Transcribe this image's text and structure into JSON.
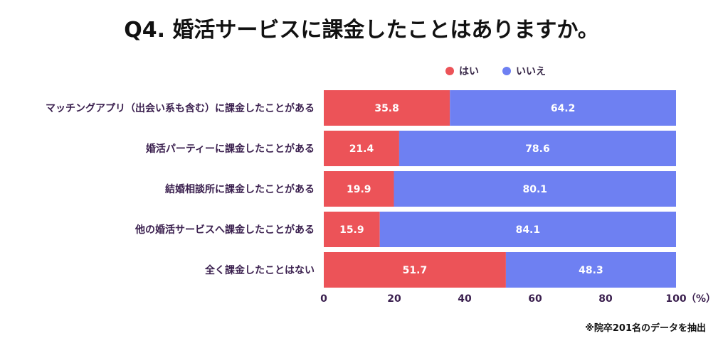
{
  "colors": {
    "yes": "#ec5358",
    "no": "#6e80f2"
  },
  "chart_data": {
    "type": "bar",
    "orientation": "horizontal",
    "stacked": true,
    "title": "Q4. 婚活サービスに課金したことはありますか。",
    "categories": [
      "マッチングアプリ（出会い系も含む）に課金したことがある",
      "婚活パーティーに課金したことがある",
      "結婚相談所に課金したことがある",
      "他の婚活サービスへ課金したことがある",
      "全く課金したことはない"
    ],
    "series": [
      {
        "name": "はい",
        "values": [
          35.8,
          21.4,
          19.9,
          15.9,
          51.7
        ]
      },
      {
        "name": "いいえ",
        "values": [
          64.2,
          78.6,
          80.1,
          84.1,
          48.3
        ]
      }
    ],
    "xlim": [
      0,
      100
    ],
    "xticks": [
      "0",
      "20",
      "40",
      "60",
      "80",
      "100"
    ],
    "x_unit": "（%）",
    "legend": "top",
    "grid": false,
    "note": "※院卒201名のデータを抽出"
  }
}
